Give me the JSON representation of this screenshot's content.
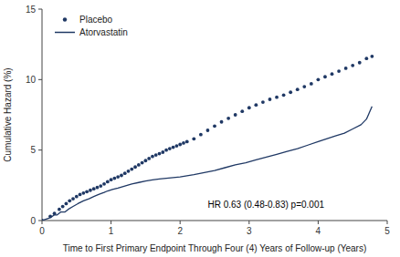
{
  "chart_data": {
    "type": "line",
    "xlabel": "Time to First Primary Endpoint Through Four (4) Years of Follow-up (Years)",
    "ylabel": "Cumulative Hazard (%)",
    "xlim": [
      0,
      5
    ],
    "ylim": [
      0,
      15
    ],
    "xticks": [
      0,
      1,
      2,
      3,
      4,
      5
    ],
    "yticks": [
      0,
      5,
      10,
      15
    ],
    "grid": false,
    "legend": "upper left",
    "series": [
      {
        "name": "Placebo",
        "type": "scatter",
        "marker": "circle",
        "color": "#1f3864",
        "x": [
          0.0,
          0.12,
          0.18,
          0.25,
          0.3,
          0.35,
          0.4,
          0.45,
          0.5,
          0.55,
          0.6,
          0.65,
          0.7,
          0.75,
          0.8,
          0.85,
          0.9,
          0.95,
          1.0,
          1.05,
          1.1,
          1.15,
          1.2,
          1.25,
          1.3,
          1.35,
          1.4,
          1.45,
          1.5,
          1.55,
          1.6,
          1.65,
          1.7,
          1.75,
          1.8,
          1.85,
          1.9,
          1.95,
          2.0,
          2.05,
          2.1,
          2.2,
          2.3,
          2.4,
          2.5,
          2.6,
          2.7,
          2.8,
          2.9,
          3.0,
          3.1,
          3.2,
          3.3,
          3.4,
          3.5,
          3.6,
          3.7,
          3.8,
          3.9,
          4.0,
          4.1,
          4.2,
          4.3,
          4.4,
          4.5,
          4.6,
          4.7,
          4.78
        ],
        "values": [
          0.0,
          0.3,
          0.5,
          0.8,
          1.0,
          1.2,
          1.4,
          1.55,
          1.7,
          1.85,
          1.95,
          2.05,
          2.15,
          2.25,
          2.35,
          2.45,
          2.6,
          2.75,
          2.9,
          3.0,
          3.1,
          3.2,
          3.35,
          3.5,
          3.65,
          3.8,
          3.95,
          4.1,
          4.25,
          4.4,
          4.55,
          4.65,
          4.75,
          4.85,
          5.0,
          5.1,
          5.2,
          5.3,
          5.4,
          5.5,
          5.6,
          5.8,
          6.1,
          6.4,
          6.7,
          7.0,
          7.25,
          7.5,
          7.75,
          8.0,
          8.2,
          8.4,
          8.6,
          8.75,
          8.9,
          9.1,
          9.3,
          9.5,
          9.7,
          10.0,
          10.2,
          10.4,
          10.6,
          10.8,
          11.0,
          11.2,
          11.5,
          11.65
        ]
      },
      {
        "name": "Atorvastatin",
        "type": "line",
        "line_style": "solid",
        "color": "#1f3864",
        "x": [
          0.0,
          0.12,
          0.18,
          0.22,
          0.27,
          0.33,
          0.38,
          0.38,
          0.45,
          0.45,
          0.52,
          0.52,
          0.6,
          0.6,
          0.68,
          0.68,
          0.75,
          0.75,
          0.82,
          0.82,
          0.9,
          0.9,
          0.95,
          0.95,
          1.02,
          1.02,
          1.1,
          1.1,
          1.2,
          1.2,
          1.3,
          1.3,
          1.4,
          1.4,
          1.5,
          1.5,
          1.6,
          1.6,
          1.7,
          1.7,
          1.8,
          1.8,
          1.9,
          1.9,
          2.0,
          2.0,
          2.1,
          2.1,
          2.2,
          2.2,
          2.35,
          2.35,
          2.5,
          2.5,
          2.65,
          2.65,
          2.8,
          2.8,
          2.95,
          2.95,
          3.1,
          3.1,
          3.25,
          3.25,
          3.4,
          3.4,
          3.55,
          3.55,
          3.7,
          3.7,
          3.85,
          3.85,
          4.0,
          4.0,
          4.12,
          4.12,
          4.25,
          4.25,
          4.38,
          4.38,
          4.5,
          4.5,
          4.62,
          4.62,
          4.7,
          4.7,
          4.78,
          4.78
        ],
        "values": [
          0.0,
          0.2,
          0.4,
          0.4,
          0.6,
          0.6,
          0.8,
          0.8,
          1.0,
          1.0,
          1.2,
          1.2,
          1.4,
          1.4,
          1.55,
          1.55,
          1.7,
          1.7,
          1.85,
          1.85,
          2.0,
          2.0,
          2.1,
          2.1,
          2.2,
          2.2,
          2.3,
          2.3,
          2.45,
          2.45,
          2.6,
          2.6,
          2.7,
          2.7,
          2.8,
          2.8,
          2.88,
          2.88,
          2.95,
          2.95,
          3.0,
          3.0,
          3.05,
          3.05,
          3.1,
          3.1,
          3.18,
          3.18,
          3.25,
          3.25,
          3.4,
          3.4,
          3.55,
          3.55,
          3.75,
          3.75,
          3.95,
          3.95,
          4.1,
          4.1,
          4.3,
          4.3,
          4.5,
          4.5,
          4.7,
          4.7,
          4.9,
          4.9,
          5.1,
          5.1,
          5.35,
          5.35,
          5.6,
          5.6,
          5.8,
          5.8,
          6.0,
          6.0,
          6.2,
          6.2,
          6.5,
          6.5,
          6.8,
          6.8,
          7.2,
          7.2,
          8.1,
          8.1
        ]
      }
    ],
    "annotations": [
      {
        "text": "HR 0.63 (0.48-0.83)  p=0.001",
        "x": 2.4,
        "y": 0.8
      }
    ]
  }
}
